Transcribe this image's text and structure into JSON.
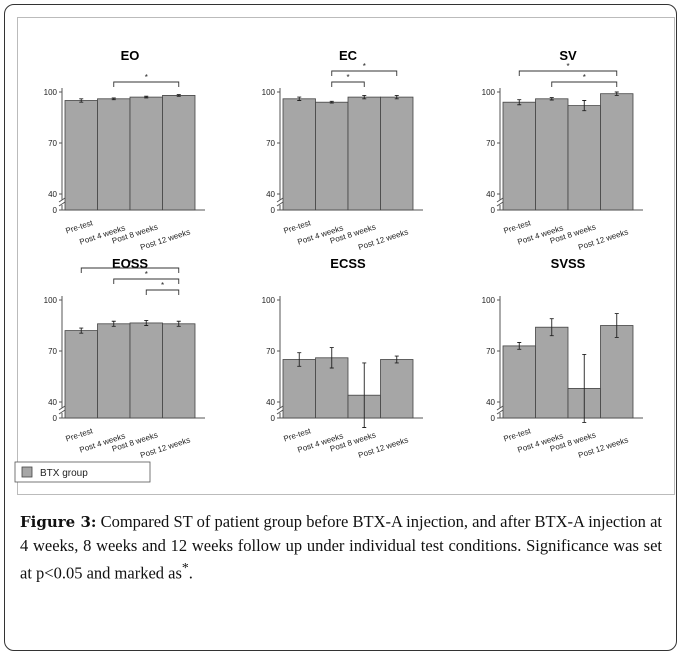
{
  "chart_data": [
    {
      "type": "bar",
      "title": "EO",
      "categories": [
        "Pre-test",
        "Post 4 weeks",
        "Post 8 weeks",
        "Post 12 weeks"
      ],
      "values": [
        95,
        96,
        97,
        98
      ],
      "errors": [
        1,
        0.5,
        0.5,
        0.5
      ],
      "color": "#a6a6a6",
      "ylim": [
        0,
        102
      ],
      "yticks": [
        0,
        40,
        70,
        100
      ],
      "significance": [
        {
          "from": 1,
          "to": 3,
          "label": "*"
        }
      ]
    },
    {
      "type": "bar",
      "title": "EC",
      "categories": [
        "Pre-test",
        "Post 4 weeks",
        "Post 8 weeks",
        "Post 12 weeks"
      ],
      "values": [
        96,
        94,
        97,
        97
      ],
      "errors": [
        1,
        0.5,
        1,
        1
      ],
      "color": "#a6a6a6",
      "ylim": [
        0,
        102
      ],
      "yticks": [
        0,
        40,
        70,
        100
      ],
      "significance": [
        {
          "from": 1,
          "to": 3,
          "label": "*"
        },
        {
          "from": 1,
          "to": 2,
          "label": "*"
        }
      ]
    },
    {
      "type": "bar",
      "title": "SV",
      "categories": [
        "Pre-test",
        "Post 4 weeks",
        "Post 8 weeks",
        "Post 12 weeks"
      ],
      "values": [
        94,
        96,
        92,
        99
      ],
      "errors": [
        1.5,
        0.7,
        3,
        1
      ],
      "color": "#a6a6a6",
      "ylim": [
        0,
        102
      ],
      "yticks": [
        0,
        40,
        70,
        100
      ],
      "significance": [
        {
          "from": 0,
          "to": 3,
          "label": "*"
        },
        {
          "from": 1,
          "to": 3,
          "label": "*"
        }
      ]
    },
    {
      "type": "bar",
      "title": "EOSS",
      "categories": [
        "Pre-test",
        "Post 4 weeks",
        "Post 8 weeks",
        "Post 12 weeks"
      ],
      "values": [
        82,
        86,
        86.5,
        86
      ],
      "errors": [
        1.5,
        1.5,
        1.5,
        1.5
      ],
      "color": "#a6a6a6",
      "ylim": [
        0,
        102
      ],
      "yticks": [
        0,
        40,
        70,
        100
      ],
      "significance": [
        {
          "from": 0,
          "to": 3,
          "label": "*"
        },
        {
          "from": 1,
          "to": 3,
          "label": "*"
        },
        {
          "from": 2,
          "to": 3,
          "label": "*"
        }
      ]
    },
    {
      "type": "bar",
      "title": "ECSS",
      "categories": [
        "Pre-test",
        "Post 4 weeks",
        "Post 8 weeks",
        "Post 12 weeks"
      ],
      "values": [
        65,
        66,
        44,
        65
      ],
      "errors": [
        4,
        6,
        19,
        2
      ],
      "color": "#a6a6a6",
      "ylim": [
        0,
        102
      ],
      "yticks": [
        0,
        40,
        70,
        100
      ],
      "significance": []
    },
    {
      "type": "bar",
      "title": "SVSS",
      "categories": [
        "Pre-test",
        "Post 4 weeks",
        "Post 8 weeks",
        "Post 12 weeks"
      ],
      "values": [
        73,
        84,
        48,
        85
      ],
      "errors": [
        2,
        5,
        20,
        7
      ],
      "color": "#a6a6a6",
      "ylim": [
        0,
        102
      ],
      "yticks": [
        0,
        40,
        70,
        100
      ],
      "significance": []
    }
  ],
  "legend": {
    "label": "BTX group",
    "color": "#a6a6a6"
  },
  "caption": {
    "label": "Figure 3:",
    "text": " Compared ST of patient group before BTX-A injection, and after BTX-A injection at 4 weeks, 8 weeks and 12 weeks follow up under individual test conditions. Significance was set at p<0.05 and marked as",
    "mark": "*",
    "end": "."
  }
}
